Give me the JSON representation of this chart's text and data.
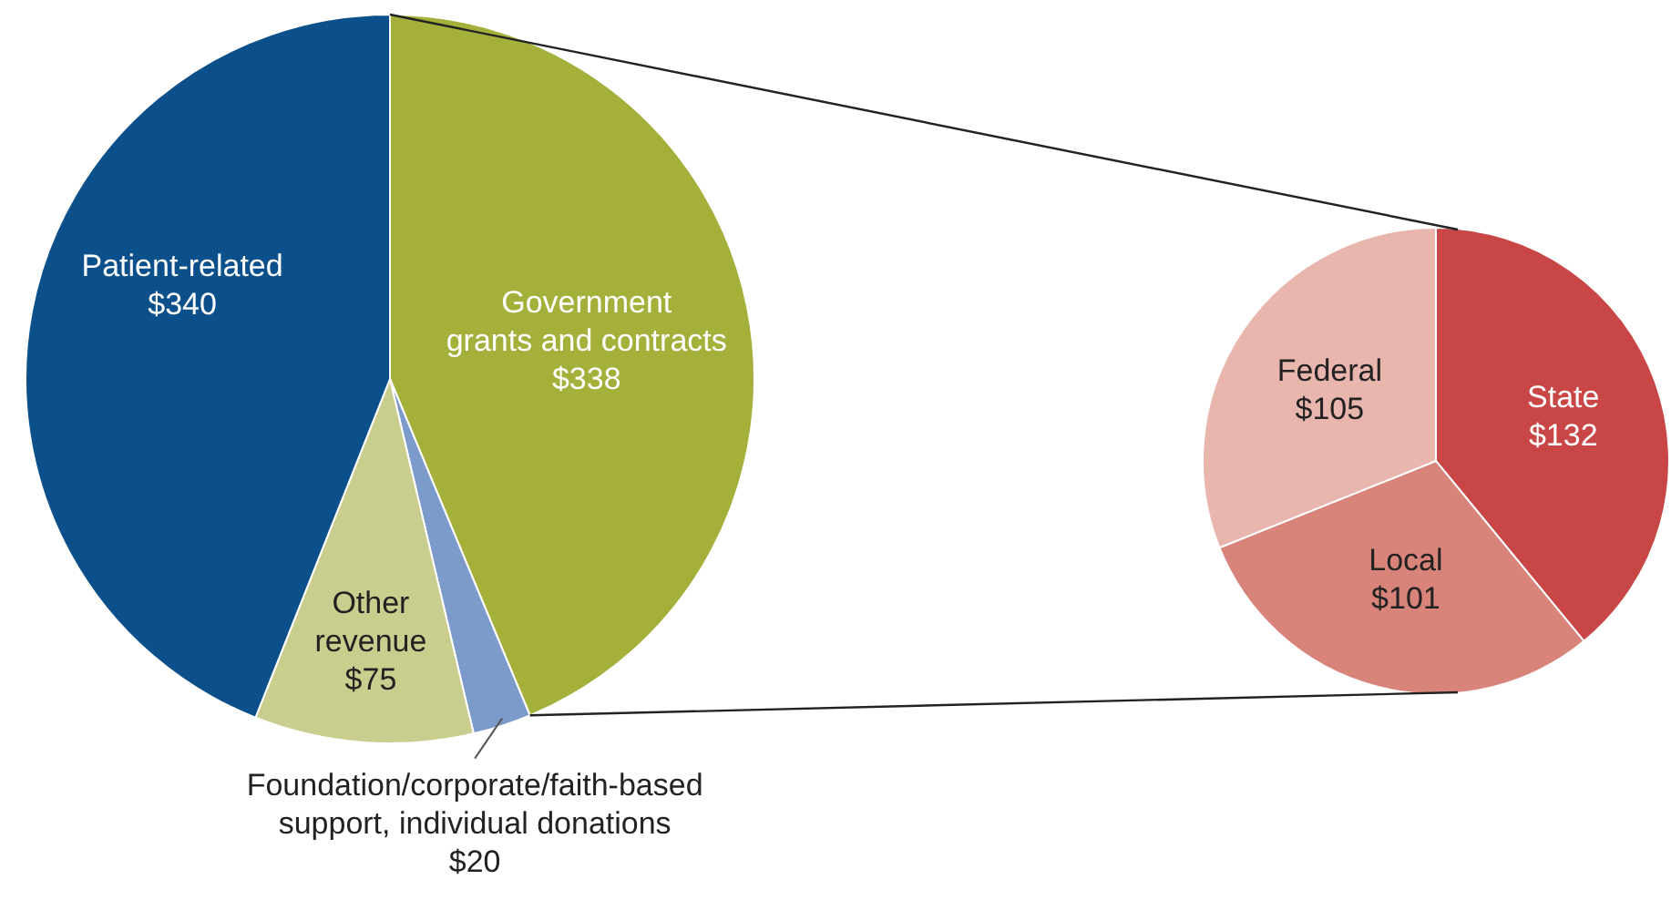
{
  "chart_data": [
    {
      "type": "pie",
      "categories": [
        "Government grants and contracts",
        "Foundation/corporate/faith-based support, individual donations",
        "Other revenue",
        "Patient-related"
      ],
      "values": [
        338,
        20,
        75,
        340
      ],
      "value_labels": [
        "$338",
        "$20",
        "$75",
        "$340"
      ],
      "colors": [
        "#a5b03b",
        "#7c9bcb",
        "#c9cd8e",
        "#0b4f8b"
      ],
      "legend": false
    },
    {
      "type": "pie",
      "categories": [
        "State",
        "Local",
        "Federal"
      ],
      "values": [
        132,
        101,
        105
      ],
      "value_labels": [
        "$132",
        "$101",
        "$105"
      ],
      "colors": [
        "#c84646",
        "#d9847a",
        "#e9b6ae"
      ],
      "legend": false
    }
  ]
}
